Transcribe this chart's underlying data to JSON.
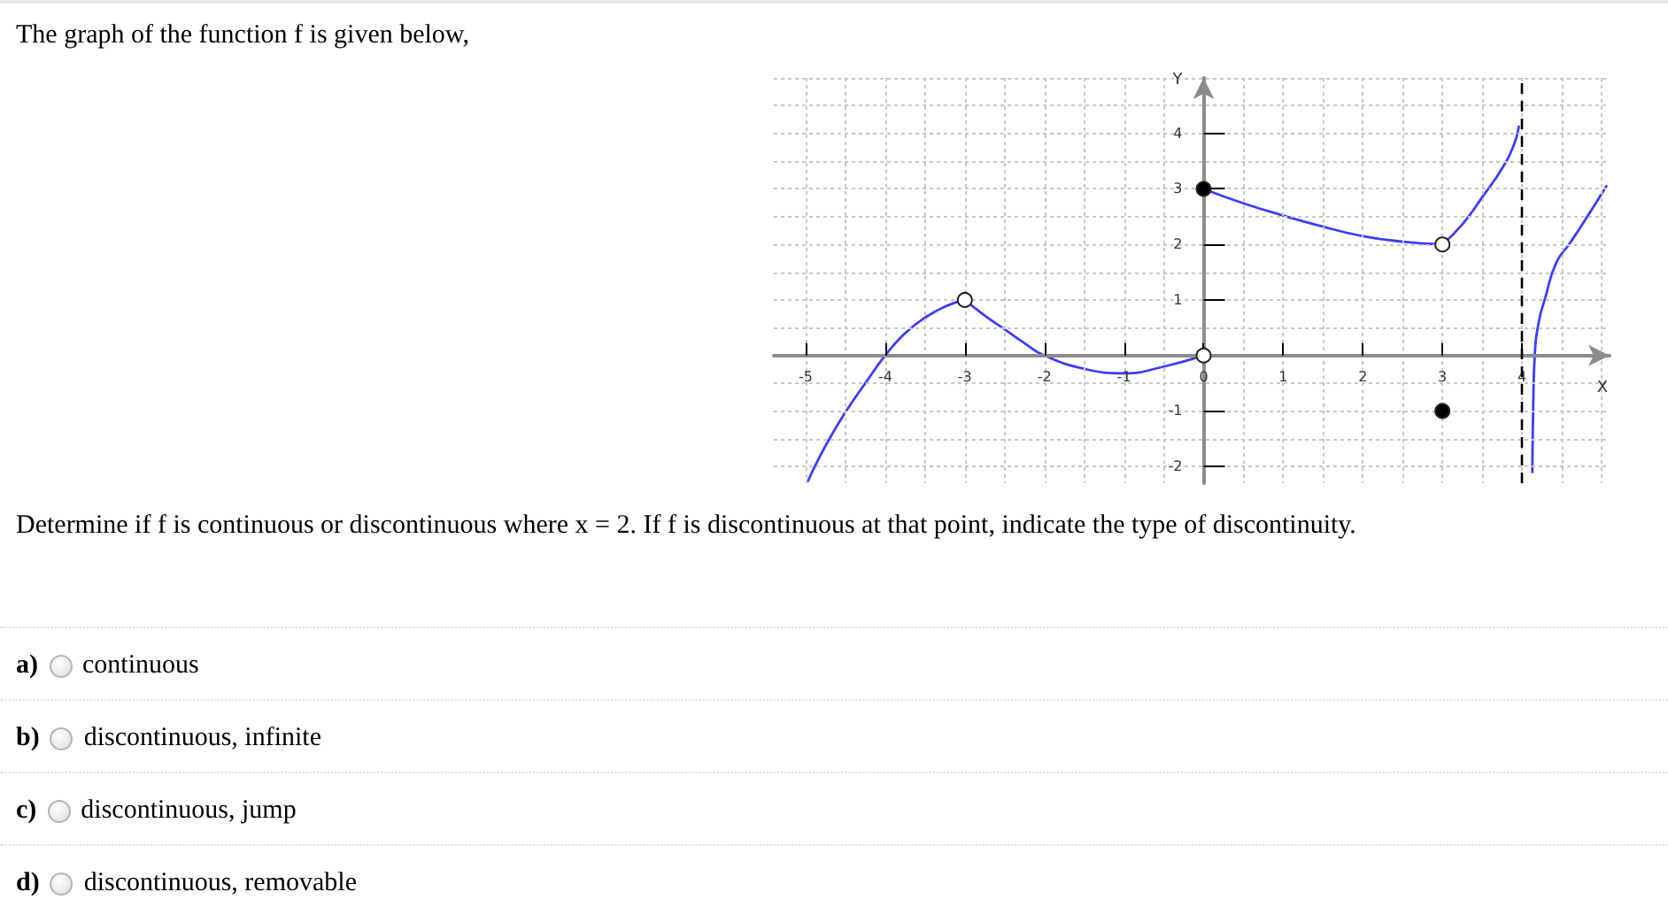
{
  "chart_data": {
    "type": "line",
    "title": "The graph of the function f is given below,",
    "xlabel": "X",
    "ylabel": "Y",
    "xlim": [
      -5.4,
      5.1
    ],
    "ylim": [
      -2.3,
      5
    ],
    "xticks": [
      -5,
      {
        "value": -4.5,
        "label": null
      },
      -4,
      {
        "value": -3.5,
        "label": null
      },
      -3,
      {
        "value": -2.5,
        "label": null
      },
      -2,
      {
        "value": -1.5,
        "label": null
      },
      -1,
      {
        "value": -0.5,
        "label": null
      },
      0,
      {
        "value": 0.5,
        "label": null
      },
      1,
      {
        "value": 1.5,
        "label": null
      },
      2,
      {
        "value": 2.5,
        "label": null
      },
      3,
      {
        "value": 3.5,
        "label": null
      },
      4,
      {
        "value": 4.5,
        "label": null
      },
      {
        "value": 5,
        "label": null
      }
    ],
    "yticks": [
      -2,
      {
        "value": -1.5,
        "label": null
      },
      -1,
      {
        "value": -0.5,
        "label": null
      },
      {
        "value": 0,
        "label": null
      },
      {
        "value": 0.5,
        "label": null
      },
      1,
      {
        "value": 1.5,
        "label": null
      },
      2,
      {
        "value": 2.5,
        "label": null
      },
      3,
      {
        "value": 3.5,
        "label": null
      },
      4,
      {
        "value": 4.5,
        "label": null
      },
      {
        "value": 5,
        "label": null
      }
    ],
    "grid": true,
    "series": [
      {
        "color": "#3c3cff",
        "x": [
          -4.97,
          -4.85,
          -4.7,
          -4.5,
          -4.25,
          -4,
          -3.75,
          -3.5,
          -3.25,
          -3
        ],
        "values": [
          -2.26,
          -1.9,
          -1.5,
          -1.02,
          -0.5,
          0,
          0.4,
          0.68,
          0.88,
          1
        ]
      },
      {
        "color": "#3c3cff",
        "x": [
          -3,
          -2.75,
          -2.5,
          -2.25,
          -2,
          -1.5,
          -1,
          -0.5,
          0
        ],
        "values": [
          1,
          0.72,
          0.47,
          0.22,
          0,
          -0.24,
          -0.32,
          -0.2,
          0
        ]
      },
      {
        "color": "#3c3cff",
        "x": [
          0,
          0.5,
          1,
          1.5,
          2,
          2.5,
          3
        ],
        "values": [
          3,
          2.74,
          2.52,
          2.32,
          2.15,
          2.05,
          2
        ]
      },
      {
        "color": "#3c3cff",
        "x": [
          3,
          3.25,
          3.5,
          3.75,
          3.9,
          3.96
        ],
        "values": [
          2,
          2.36,
          2.85,
          3.37,
          3.8,
          4.12
        ]
      },
      {
        "color": "#3c3cff",
        "x": [
          4.13,
          4.14,
          4.16,
          4.21,
          4.29,
          4.43,
          4.6,
          4.73,
          4.9,
          5.06
        ],
        "values": [
          -2.1,
          -1,
          0,
          0.6,
          1.03,
          1.67,
          2.02,
          2.3,
          2.68,
          3.05
        ]
      },
      {
        "type": "scatter",
        "color": "#ffffff",
        "marker": "circle",
        "x": [
          -3,
          0,
          3
        ],
        "values": [
          1,
          0,
          2
        ]
      },
      {
        "type": "scatter",
        "color": "#000000",
        "marker": "circle",
        "x": [
          0,
          3
        ],
        "values": [
          3,
          -1
        ]
      }
    ],
    "ref_lines": [
      {
        "axis": "x",
        "value": 4,
        "line_style": "dashed",
        "color": "#000000"
      }
    ],
    "annotations": [
      "Determine if f is continuous or discontinuous where x = 2. If f is discontinuous at that point, indicate the type of discontinuity.",
      "a) continuous",
      "b) discontinuous, infinite",
      "c) discontinuous, jump",
      "d) discontinuous, removable"
    ]
  }
}
